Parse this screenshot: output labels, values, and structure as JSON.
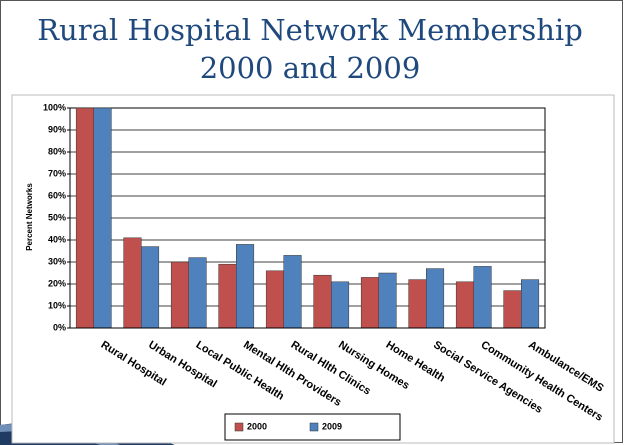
{
  "chart_data": {
    "type": "bar",
    "title": "Rural Hospital Network Membership",
    "subtitle": "2000 and 2009",
    "y_label": "Percent Networks",
    "categories": [
      "Rural Hospital",
      "Urban Hospital",
      "Local Public Health",
      "Mental Hlth Providers",
      "Rural Hlth Clinics",
      "Nursing Homes",
      "Home Health",
      "Social Service Agencies",
      "Community Health Centers",
      "Ambulance/EMS"
    ],
    "series": [
      {
        "name": "2000",
        "color": "#c0504d",
        "values": [
          100,
          41,
          30,
          29,
          26,
          24,
          23,
          22,
          21,
          17
        ]
      },
      {
        "name": "2009",
        "color": "#4f81bd",
        "values": [
          100,
          37,
          32,
          38,
          33,
          21,
          25,
          27,
          28,
          22
        ]
      }
    ],
    "ylim": [
      0,
      100
    ],
    "yticks": [
      {
        "value": 0,
        "label": "0%"
      },
      {
        "value": 10,
        "label": "10%"
      },
      {
        "value": 20,
        "label": "20%"
      },
      {
        "value": 30,
        "label": "30%"
      },
      {
        "value": 40,
        "label": "40%"
      },
      {
        "value": 50,
        "label": "50%"
      },
      {
        "value": 60,
        "label": "60%"
      },
      {
        "value": 70,
        "label": "70%"
      },
      {
        "value": 80,
        "label": "80%"
      },
      {
        "value": 90,
        "label": "90%"
      },
      {
        "value": 100,
        "label": "100%"
      }
    ],
    "grid": true,
    "legend": "bottom"
  }
}
